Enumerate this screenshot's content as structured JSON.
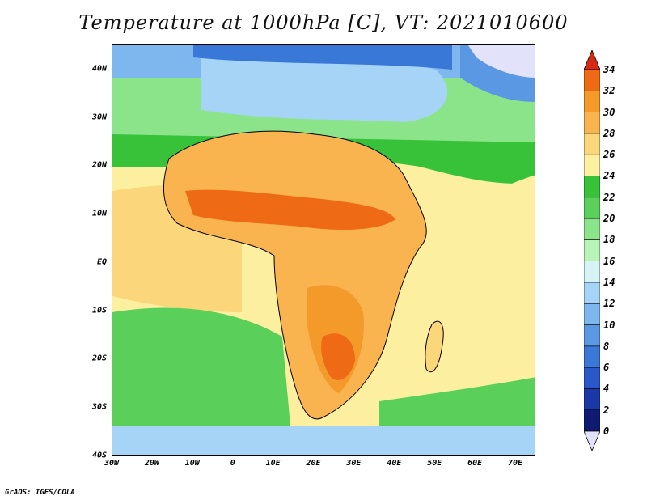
{
  "title": "Temperature at 1000hPa [C], VT: 2021010600",
  "credit": "GrADS: IGES/COLA",
  "map": {
    "lon_range": [
      -30,
      75
    ],
    "lat_range": [
      -40,
      45
    ],
    "lat_ticks": [
      {
        "value": 40,
        "label": "40N"
      },
      {
        "value": 30,
        "label": "30N"
      },
      {
        "value": 20,
        "label": "20N"
      },
      {
        "value": 10,
        "label": "10N"
      },
      {
        "value": 0,
        "label": "EQ"
      },
      {
        "value": -10,
        "label": "10S"
      },
      {
        "value": -20,
        "label": "20S"
      },
      {
        "value": -30,
        "label": "30S"
      },
      {
        "value": -40,
        "label": "40S"
      }
    ],
    "lon_ticks": [
      {
        "value": -30,
        "label": "30W"
      },
      {
        "value": -20,
        "label": "20W"
      },
      {
        "value": -10,
        "label": "10W"
      },
      {
        "value": 0,
        "label": "0"
      },
      {
        "value": 10,
        "label": "10E"
      },
      {
        "value": 20,
        "label": "20E"
      },
      {
        "value": 30,
        "label": "30E"
      },
      {
        "value": 40,
        "label": "40E"
      },
      {
        "value": 50,
        "label": "50E"
      },
      {
        "value": 60,
        "label": "60E"
      },
      {
        "value": 70,
        "label": "70E"
      }
    ]
  },
  "colorbar": {
    "levels": [
      0,
      2,
      4,
      6,
      8,
      10,
      12,
      14,
      16,
      18,
      20,
      22,
      24,
      26,
      28,
      30,
      32,
      34
    ],
    "labels": [
      "0",
      "2",
      "4",
      "6",
      "8",
      "10",
      "12",
      "14",
      "16",
      "18",
      "20",
      "22",
      "24",
      "26",
      "28",
      "30",
      "32",
      "34"
    ],
    "under_color": "#e2e2fa",
    "over_color": "#d72a14",
    "colors": [
      "#0e1a72",
      "#1a38a8",
      "#2a58c8",
      "#3a78d8",
      "#5a98e4",
      "#7eb6ee",
      "#a6d4f6",
      "#d6f4f6",
      "#b8f4b8",
      "#8ce48a",
      "#5ad05a",
      "#38c23a",
      "#fcf0a0",
      "#fbd67a",
      "#f9b450",
      "#f49a2a",
      "#ee6a14"
    ]
  }
}
